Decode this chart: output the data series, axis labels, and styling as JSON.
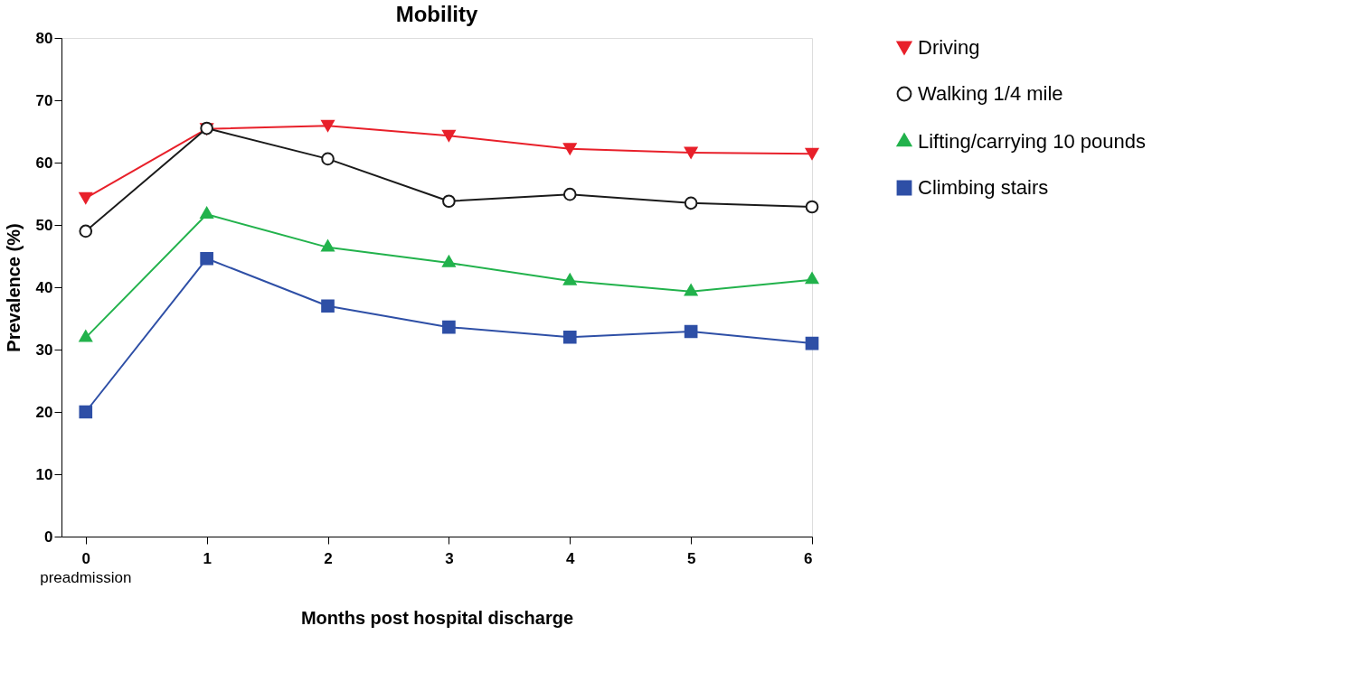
{
  "chart_data": {
    "type": "line",
    "title": "Mobility",
    "xlabel": "Months post hospital discharge",
    "ylabel": "Prevalence (%)",
    "x": [
      0,
      1,
      2,
      3,
      4,
      5,
      6
    ],
    "series": [
      {
        "name": "Driving",
        "color": "#e8202a",
        "marker": "triangle-down",
        "values": [
          54.3,
          65.4,
          65.9,
          64.3,
          62.2,
          61.6,
          61.4
        ]
      },
      {
        "name": "Walking 1/4 mile",
        "color": "#1a1a1a",
        "marker": "circle",
        "values": [
          49.0,
          65.5,
          60.6,
          53.8,
          54.9,
          53.5,
          52.9
        ]
      },
      {
        "name": "Lifting/carrying 10 pounds",
        "color": "#22b24c",
        "marker": "triangle",
        "values": [
          31.9,
          51.7,
          46.4,
          43.9,
          41.0,
          39.3,
          41.2
        ]
      },
      {
        "name": "Climbing stairs",
        "color": "#2e4fa6",
        "marker": "square",
        "values": [
          20.0,
          44.6,
          37.0,
          33.6,
          32.0,
          32.9,
          31.0
        ]
      }
    ],
    "xlim": [
      -0.2,
      6
    ],
    "xticks": [
      0,
      1,
      2,
      3,
      4,
      5,
      6
    ],
    "ylim": [
      0,
      80
    ],
    "yticks": [
      0,
      10,
      20,
      30,
      40,
      50,
      60,
      70,
      80
    ],
    "annotations": [
      "preadmission"
    ],
    "grid": false,
    "legend": "right",
    "line_style": "solid"
  }
}
